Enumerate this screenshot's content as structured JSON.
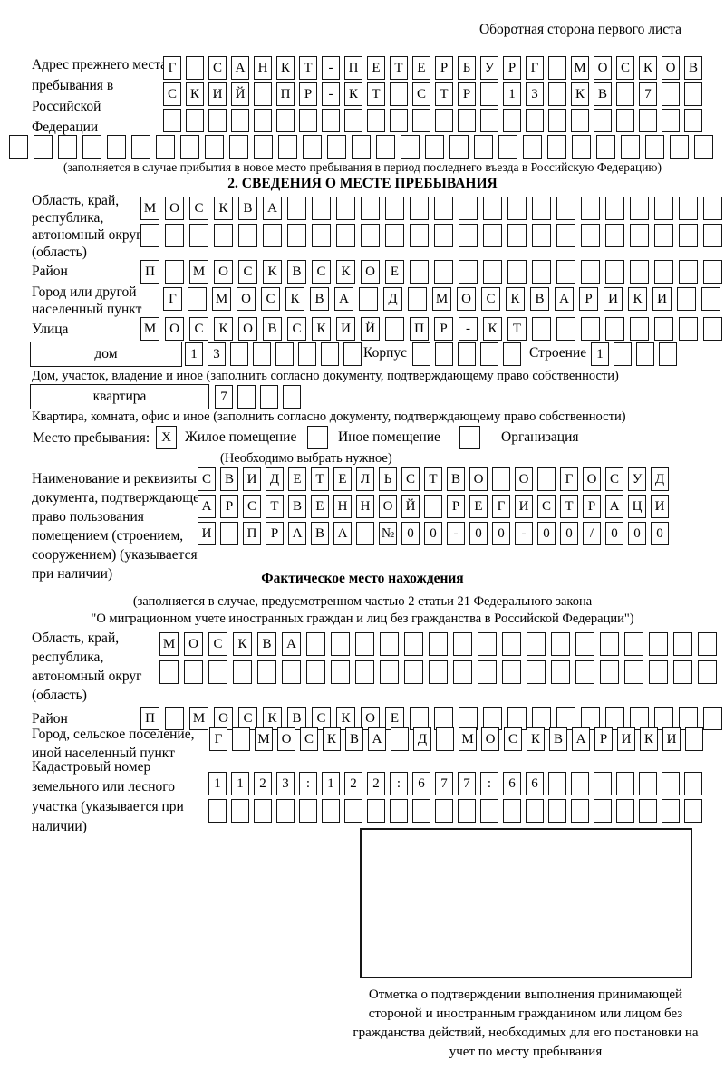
{
  "page": {
    "header_note": "Оборотная сторона первого листа"
  },
  "prev_address": {
    "label": "Адрес прежнего места пребывания в Российской Федерации",
    "rows": {
      "r1": "Г САНКТ-ПЕТЕРБУРГ МОСКОВ",
      "r2": "СКИЙ ПР-КТ СТР 13 КВ 7",
      "r3": "",
      "r4": ""
    },
    "caption": "(заполняется в случае прибытия в новое место пребывания в период последнего въезда в Российскую Федерацию)"
  },
  "section2": {
    "title": "2. СВЕДЕНИЯ О МЕСТЕ ПРЕБЫВАНИЯ",
    "oblast": {
      "label": "Область, край, республика, автономный округ (область)",
      "row1": "МОСКВА",
      "row2": ""
    },
    "rayon": {
      "label": "Район",
      "row": "П МОСКВСКОЕ"
    },
    "gorod": {
      "label": "Город или другой населенный пункт",
      "row": "Г МОСКВА Д МОСКВАРИКИ"
    },
    "ulitsa": {
      "label": "Улица",
      "row": "МОСКОВСКИЙ ПР-КТ"
    },
    "dom": {
      "label": "дом",
      "row": "13",
      "korpus_label": "Корпус",
      "korpus_row": "",
      "stroenie_label": "Строение",
      "stroenie_row": "1",
      "caption": "Дом, участок, владение и иное (заполнить согласно документу, подтверждающему право собственности)"
    },
    "kvartira": {
      "label": "квартира",
      "row": "7",
      "caption": "Квартира, комната, офис и иное (заполнить согласно документу, подтверждающему право собственности)"
    },
    "mesto": {
      "label": "Место пребывания:",
      "options": [
        {
          "label": "Жилое помещение",
          "mark": "X"
        },
        {
          "label": "Иное помещение",
          "mark": ""
        },
        {
          "label": "Организация",
          "mark": ""
        }
      ],
      "note": "(Необходимо выбрать нужное)"
    },
    "doc": {
      "label": "Наименование и реквизиты документа, подтверждающего право пользования помещением (строением, сооружением) (указывается при наличии)",
      "row1": "СВИДЕТЕЛЬСТВО О ГОСУД",
      "row2": "АРСТВЕННОЙ РЕГИСТРАЦИ",
      "row3": "И ПРАВА №00-00-00/000"
    }
  },
  "factual": {
    "title": "Фактическое место нахождения",
    "subtitle1": "(заполняется в случае, предусмотренном частью 2 статьи 21 Федерального закона",
    "subtitle2": "\"О миграционном учете иностранных граждан и лиц без гражданства в Российской Федерации\")",
    "oblast": {
      "label": "Область, край, республика, автономный округ (область)",
      "row1": "МОСКВА",
      "row2": ""
    },
    "rayon": {
      "label": "Район",
      "row": "П МОСКВСКОЕ"
    },
    "gorod": {
      "label": "Город, сельское поселение, иной населенный пункт",
      "row": "Г МОСКВА Д МОСКВАРИКИ"
    },
    "kadastr": {
      "label": "Кадастровый номер земельного или лесного участка (указывается при наличии)",
      "row1": "1123:122:677:66",
      "row2": ""
    },
    "stamp_caption": "Отметка о подтверждении выполнения принимающей стороной и иностранным гражданином или лицом без гражданства действий, необходимых для его постановки на учет по месту пребывания"
  }
}
